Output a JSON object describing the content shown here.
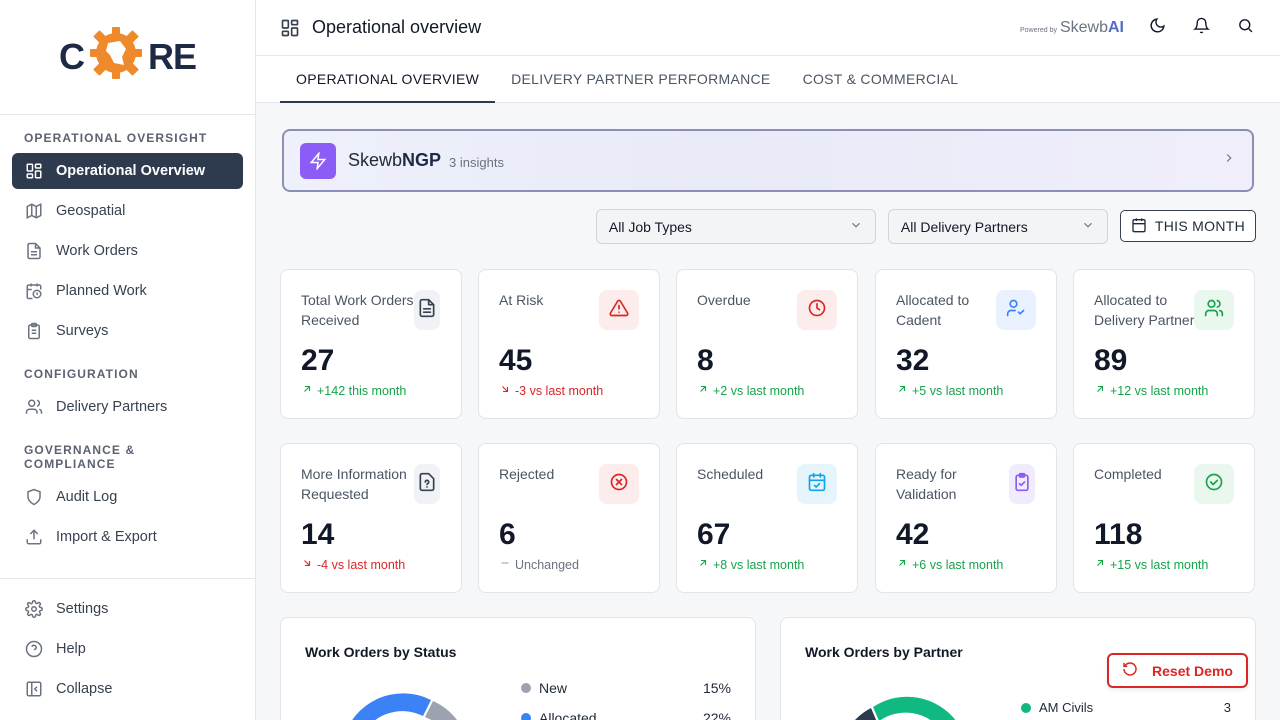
{
  "app": {
    "logo_left": "C",
    "logo_right": "RE"
  },
  "sidebar": {
    "sections": [
      {
        "title": "OPERATIONAL OVERSIGHT",
        "items": [
          {
            "label": "Operational Overview",
            "icon": "layout-grid-icon"
          },
          {
            "label": "Geospatial",
            "icon": "map-icon"
          },
          {
            "label": "Work Orders",
            "icon": "document-icon"
          },
          {
            "label": "Planned Work",
            "icon": "calendar-clock-icon"
          },
          {
            "label": "Surveys",
            "icon": "clipboard-icon"
          }
        ]
      },
      {
        "title": "CONFIGURATION",
        "items": [
          {
            "label": "Delivery Partners",
            "icon": "users-icon"
          }
        ]
      },
      {
        "title": "GOVERNANCE & COMPLIANCE",
        "items": [
          {
            "label": "Audit Log",
            "icon": "shield-icon"
          },
          {
            "label": "Import & Export",
            "icon": "upload-icon"
          }
        ]
      }
    ],
    "bottom": [
      {
        "label": "Settings",
        "icon": "gear-icon"
      },
      {
        "label": "Help",
        "icon": "help-circle-icon"
      },
      {
        "label": "Collapse",
        "icon": "collapse-icon"
      }
    ]
  },
  "header": {
    "title": "Operational overview",
    "powered_small": "Powered by",
    "powered_brand": "Skewb",
    "powered_brand_bold": "AI"
  },
  "tabs": [
    {
      "label": "OPERATIONAL OVERVIEW",
      "active": true
    },
    {
      "label": "DELIVERY PARTNER PERFORMANCE",
      "active": false
    },
    {
      "label": "COST & COMMERCIAL",
      "active": false
    }
  ],
  "insight": {
    "name": "Skewb",
    "name_bold": "NGP",
    "count": "3 insights"
  },
  "filters": {
    "job_types": "All Job Types",
    "partners": "All Delivery Partners",
    "period": "THIS MONTH"
  },
  "cards": [
    {
      "label": "Total Work Orders Received",
      "value": "27",
      "trend": "+142 this month",
      "dir": "up",
      "icon": "document-icon",
      "accent": "#374151",
      "bg": "#f0f2f5"
    },
    {
      "label": "At Risk",
      "value": "45",
      "trend": "-3 vs last month",
      "dir": "down",
      "icon": "alert-triangle-icon",
      "accent": "#dc2626",
      "bg": "#fdecec"
    },
    {
      "label": "Overdue",
      "value": "8",
      "trend": "+2 vs last month",
      "dir": "up",
      "icon": "clock-icon",
      "accent": "#dc2626",
      "bg": "#fdecec"
    },
    {
      "label": "Allocated to Cadent",
      "value": "32",
      "trend": "+5 vs last month",
      "dir": "up",
      "icon": "user-check-icon",
      "accent": "#3b82f6",
      "bg": "#eaf1fe"
    },
    {
      "label": "Allocated to Delivery Partner",
      "value": "89",
      "trend": "+12 vs last month",
      "dir": "up",
      "icon": "users-icon",
      "accent": "#16a34a",
      "bg": "#e9f7ee"
    },
    {
      "label": "More Information Requested",
      "value": "14",
      "trend": "-4 vs last month",
      "dir": "down",
      "icon": "file-question-icon",
      "accent": "#374151",
      "bg": "#f0f2f5"
    },
    {
      "label": "Rejected",
      "value": "6",
      "trend": "Unchanged",
      "dir": "flat",
      "icon": "x-circle-icon",
      "accent": "#dc2626",
      "bg": "#fdecec"
    },
    {
      "label": "Scheduled",
      "value": "67",
      "trend": "+8 vs last month",
      "dir": "up",
      "icon": "calendar-check-icon",
      "accent": "#0ea5e9",
      "bg": "#e6f5fc"
    },
    {
      "label": "Ready for Validation",
      "value": "42",
      "trend": "+6 vs last month",
      "dir": "up",
      "icon": "clipboard-check-icon",
      "accent": "#8b5cf6",
      "bg": "#f1ecfd"
    },
    {
      "label": "Completed",
      "value": "118",
      "trend": "+15 vs last month",
      "dir": "up",
      "icon": "check-circle-icon",
      "accent": "#16a34a",
      "bg": "#e9f7ee"
    }
  ],
  "status_chart": {
    "title": "Work Orders by Status",
    "legend": [
      {
        "name": "New",
        "pct": "15%",
        "color": "#9ca3af"
      },
      {
        "name": "Allocated",
        "pct": "22%",
        "color": "#3b82f6"
      }
    ]
  },
  "partner_chart": {
    "title": "Work Orders by Partner",
    "legend": [
      {
        "name": "AM Civils",
        "count": "3",
        "color": "#10b981"
      }
    ]
  },
  "reset_label": "Reset Demo",
  "colors": {
    "sidebar_active": "#2e3a4e",
    "insight_accent": "#8b5cf6",
    "danger": "#dc2626",
    "success": "#16a34a"
  }
}
